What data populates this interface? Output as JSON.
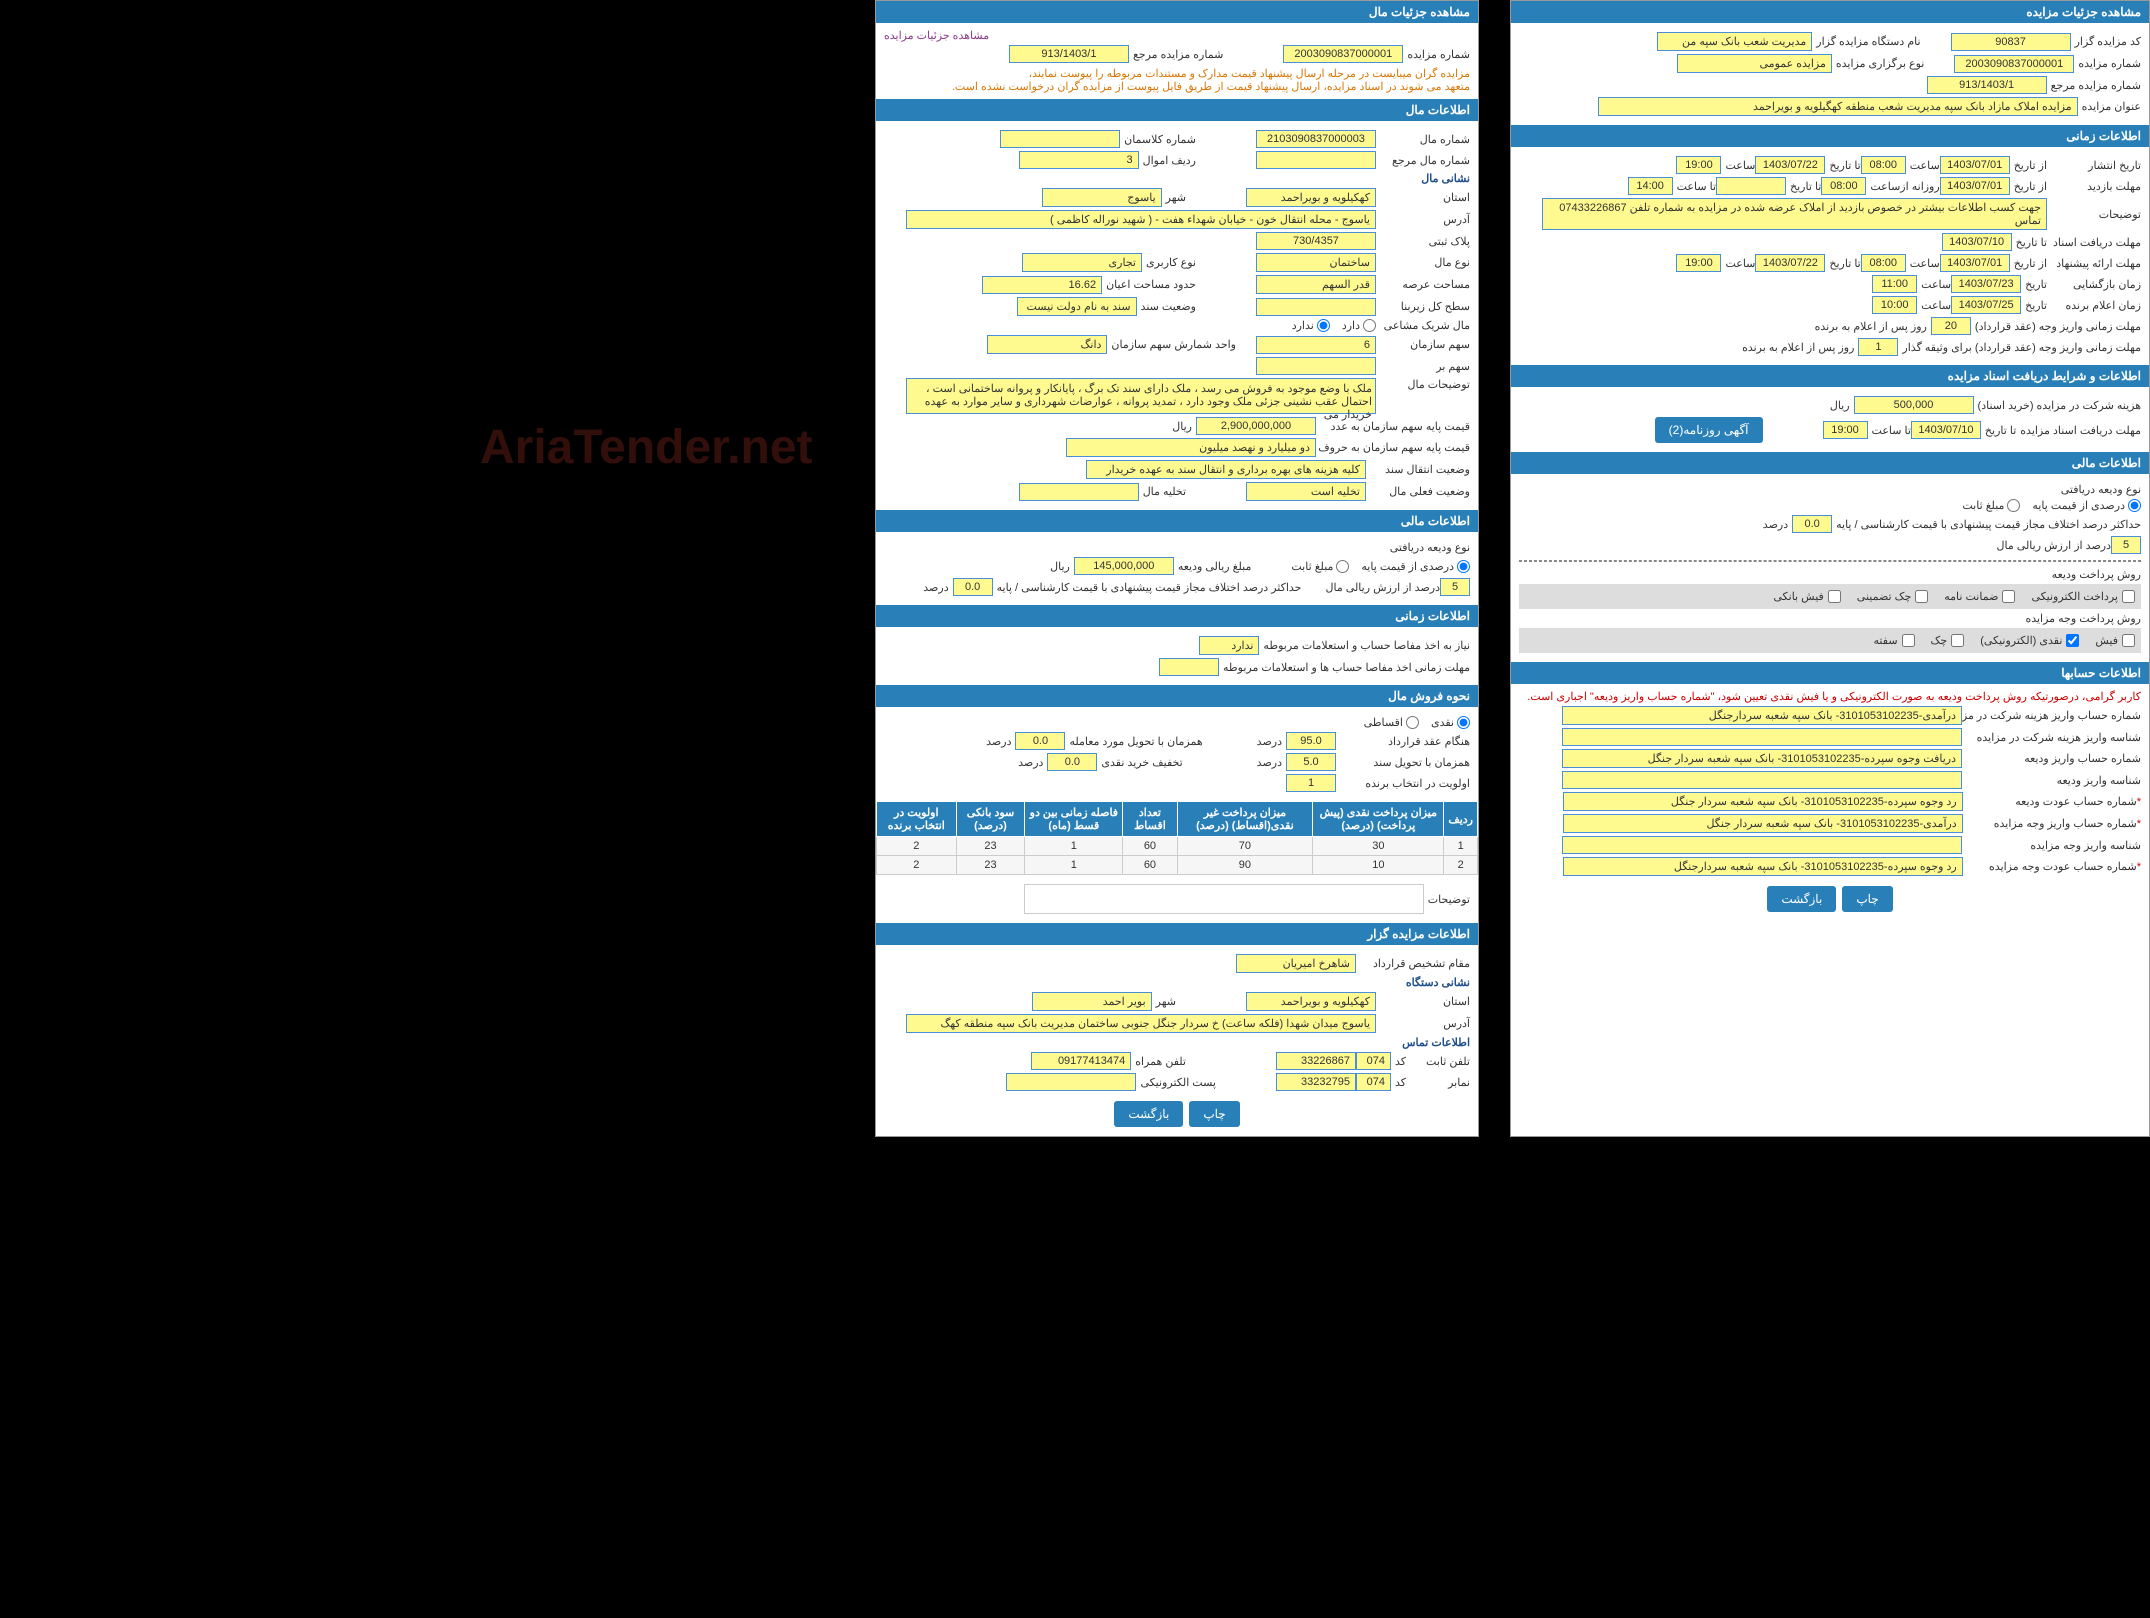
{
  "watermark": "AriaTender.net",
  "right": {
    "auction_details": {
      "header": "مشاهده جزئیات مزایده",
      "organizer_code_label": "کد مزایده گزار",
      "organizer_code": "90837",
      "organizer_name_label": "نام دستگاه مزایده گزار",
      "organizer_name": "مدیریت شعب بانک سپه من",
      "auction_number_label": "شماره مزایده",
      "auction_number": "2003090837000001",
      "auction_type_label": "نوع برگزاری مزایده",
      "auction_type": "مزایده عمومی",
      "ref_number_label": "شماره مزایده مرجع",
      "ref_number": "913/1403/1",
      "title_label": "عنوان مزایده",
      "title": "مزایده املاک مازاد بانک سپه مدیریت شعب منطقه کهگیلویه و بویراحمد"
    },
    "time_info": {
      "header": "اطلاعات زمانی",
      "publish_label": "تاریخ انتشار",
      "from_label": "از تاریخ",
      "to_label": "تا تاریخ",
      "time_label": "ساعت",
      "publish_from_date": "1403/07/01",
      "publish_from_time": "08:00",
      "publish_to_date": "1403/07/22",
      "publish_to_time": "19:00",
      "visit_label": "مهلت بازدید",
      "visit_from_date": "1403/07/01",
      "visit_from_time": "08:00",
      "visit_to_date": "",
      "visit_to_time": "14:00",
      "daily_from_label": "روزانه ازساعت",
      "daily_to_label": "تا ساعت",
      "desc_label": "توضیحات",
      "desc_text": "جهت کسب اطلاعات بیشتر در خصوص بازدید از املاک عرضه شده در مزایده به شماره تلفن 07433226867 تماس",
      "doc_receive_label": "مهلت دریافت اسناد",
      "doc_receive_date": "1403/07/10",
      "doc_receive_to": "",
      "offer_label": "مهلت ارائه پیشنهاد",
      "offer_from_date": "1403/07/01",
      "offer_from_time": "08:00",
      "offer_to_date": "1403/07/22",
      "offer_to_time": "19:00",
      "opening_label": "زمان بازگشایی",
      "opening_date": "1403/07/23",
      "opening_time": "11:00",
      "winner_label": "زمان اعلام برنده",
      "winner_date": "1403/07/25",
      "winner_time": "10:00",
      "deposit_label": "مهلت زمانی واریز وجه (عقد قرارداد)",
      "deposit_days": "20",
      "deposit_suffix": "روز پس از اعلام به برنده",
      "collateral_label": "مهلت زمانی واریز وجه (عقد قرارداد) برای وثیقه گذار",
      "collateral_days": "1",
      "collateral_suffix": "روز پس از اعلام به برنده"
    },
    "doc_conditions": {
      "header": "اطلاعات و شرایط دریافت اسناد مزایده",
      "cost_label": "هزینه شرکت در مزایده (خرید اسناد)",
      "cost": "500,000",
      "cost_unit": "ریال",
      "receive_label": "مهلت دریافت اسناد مزایده",
      "receive_from": "1403/07/10",
      "receive_to": "19:00",
      "to_time_label": "تا ساعت",
      "newspaper_btn": "آگهی روزنامه(2)"
    },
    "financial": {
      "header": "اطلاعات مالی",
      "deposit_type_label": "نوع ودیعه دریافتی",
      "percent_base_label": "درصدی از قیمت پایه",
      "fixed_amount_label": "مبلغ ثابت",
      "max_diff_label": "حداکثر درصد اختلاف مجاز قیمت پیشنهادی با قیمت کارشناسی / پایه",
      "max_diff": "0.0",
      "percent_unit": "درصد",
      "percent_rial_label": "درصد از ارزش ریالی مال",
      "percent_rial": "5",
      "deposit_method_label": "روش پرداخت ودیعه",
      "method_electronic": "پرداخت الکترونیکی",
      "method_guarantee": "ضمانت نامه",
      "method_check": "چک تضمینی",
      "method_fish": "فیش بانکی",
      "payment_method_label": "روش پرداخت وجه مزایده",
      "pay_fish": "فیش",
      "pay_cash": "نقدی (الکترونیکی)",
      "pay_check": "چک",
      "pay_safte": "سفته"
    },
    "accounts": {
      "header": "اطلاعات حسابها",
      "warning": "کاربر گرامی، درصورتیکه روش پرداخت ودیعه به صورت الکترونیکی و یا فیش نقدی تعیین شود، \"شماره حساب واریز ودیعه\" اجباری است.",
      "acc1_label": "شماره حساب واریز هزینه شرکت در مزایده",
      "acc1": "درآمدی-3101053102235- بانک سپه شعبه سردارجنگل",
      "acc2_label": "شناسه واریز هزینه شرکت در مزایده",
      "acc3_label": "شماره حساب واریز ودیعه",
      "acc3": "دریافت وجوه سپرده-3101053102235- بانک سپه شعبه سردار جنگل",
      "acc4_label": "شناسه واریز ودیعه",
      "acc5_label": "شماره حساب عودت ودیعه",
      "acc5": "رد وجوه سپرده-3101053102235- بانک سپه شعبه سردار جنگل",
      "acc6_label": "شماره حساب واریز وجه مزایده",
      "acc6": "درآمدی-3101053102235- بانک سپه شعبه سردار جنگل",
      "acc7_label": "شناسه واریز وجه مزایده",
      "acc8_label": "شماره حساب عودت وجه مزایده",
      "acc8": "رد وجوه سپرده-3101053102235- بانک سپه شعبه سردارجنگل",
      "print_btn": "چاپ",
      "back_btn": "بازگشت"
    }
  },
  "left": {
    "property_details": {
      "header": "مشاهده جزئیات مال",
      "details_link": "مشاهده جزئیات مزایده",
      "auction_number_label": "شماره مزایده",
      "auction_number": "2003090837000001",
      "ref_number_label": "شماره مزایده مرجع",
      "ref_number": "913/1403/1",
      "notice1": "مزایده گران میبایست در مرحله ارسال پیشنهاد قیمت مدارک و مستندات مربوطه را پیوست نمایند،",
      "notice2": "متعهد می شوند در اسناد مزایده، ارسال پیشنهاد قیمت از طریق فایل پیوست از مزایده گران درخواست نشده است."
    },
    "property_info": {
      "header": "اطلاعات مال",
      "property_id_label": "شماره مال",
      "property_id": "2103090837000003",
      "class_number_label": "شماره کلاسمان",
      "class_number": "",
      "ref_property_label": "شماره مال مرجع",
      "row_label": "ردیف اموال",
      "row": "3",
      "address_header": "نشانی مال",
      "province_label": "استان",
      "province": "کهکیلویه و بویراحمد",
      "city_label": "شهر",
      "city": "یاسوج",
      "address_label": "آدرس",
      "address": "یاسوج - محله انتقال خون - خیابان شهداء هفت - ( شهید نوراله کاظمی )",
      "plaque_label": "پلاک ثبتی",
      "plaque": "730/4357",
      "property_type_label": "نوع مال",
      "property_type": "ساختمان",
      "use_type_label": "نوع کاربری",
      "use_type": "تجاری",
      "area_label": "مساحت عرصه",
      "area": "قدر السهم",
      "built_area_label": "حدود مساحت اعیان",
      "built_area": "16.62",
      "floor_label": "سطح کل زیربنا",
      "floor": "",
      "doc_status_label": "وضعیت سند",
      "doc_status": "سند به نام دولت نیست",
      "partner_label": "مال شریک مشاعی",
      "has_label": "دارد",
      "hasnt_label": "ندارد",
      "org_share_label": "سهم سازمان",
      "org_share": "6",
      "count_unit_label": "واحد شمارش سهم سازمان",
      "count_unit": "دانگ",
      "rest_share_label": "سهم بر",
      "desc_area_label": "توضیحات مال",
      "desc_area": "ملک با وضع موجود به فروش می رسد ، ملک دارای سند تک برگ ، پایانکار و پروانه ساختمانی است ، احتمال عقب نشینی جزئی ملک وجود دارد ، تمدید پروانه ، عوارضات شهرداری و سایر موارد به عهده خریدار می",
      "base_price_num_label": "قیمت پایه سهم سازمان به عدد",
      "base_price_num": "2,900,000,000",
      "rial": "ریال",
      "base_price_word_label": "قیمت پایه سهم سازمان به حروف",
      "base_price_word": "دو میلیارد و نهصد میلیون",
      "transfer_label": "وضعیت انتقال سند",
      "transfer": "کلیه هزینه های بهره برداری و انتقال سند به عهده خریدار",
      "current_status_label": "وضعیت فعلی مال",
      "current_status": "تخلیه است",
      "evac_label": "تخلیه مال"
    },
    "financial": {
      "header": "اطلاعات مالی",
      "deposit_type_label": "نوع ودیعه دریافتی",
      "percent_base_label": "درصدی از قیمت پایه",
      "fixed_amount_label": "مبلغ ثابت",
      "deposit_amount_label": "مبلغ ریالی ودیعه",
      "deposit_amount": "145,000,000",
      "rial": "ریال",
      "percent_rial_label": "درصد از ارزش ریالی مال",
      "percent_rial": "5",
      "max_diff_label": "حداکثر درصد اختلاف مجاز قیمت پیشنهادی با قیمت کارشناسی / پایه",
      "max_diff": "0.0",
      "percent": "درصد"
    },
    "time_info": {
      "header": "اطلاعات زمانی",
      "need_inquiry_label": "نیاز به اخذ مفاصا حساب و استعلامات مربوطه",
      "need_inquiry": "ندارد",
      "inquiry_time_label": "مهلت زمانی اخذ مفاصا حساب ها و استعلامات مربوطه"
    },
    "sale_method": {
      "header": "نحوه فروش مال",
      "cash_label": "نقدی",
      "installment_label": "اقساطی",
      "at_contract_label": "هنگام عقد قرارداد",
      "at_contract": "95.0",
      "same_delivery_label": "همزمان با تحویل مورد معامله",
      "same_delivery": "0.0",
      "at_doc_label": "همزمان با تحویل سند",
      "at_doc": "5.0",
      "cash_discount_label": "تخفیف خرید نقدی",
      "cash_discount": "0.0",
      "priority_label": "اولویت در انتخاب برنده",
      "priority": "1",
      "percent": "درصد"
    },
    "installments": {
      "columns": [
        "ردیف",
        "میزان پرداخت نقدی (پیش پرداخت) (درصد)",
        "میزان پرداخت غیر نقدی(اقساط) (درصد)",
        "تعداد اقساط",
        "فاصله زمانی بین دو قسط (ماه)",
        "سود بانکی (درصد)",
        "اولویت در انتخاب برنده"
      ],
      "rows": [
        [
          "1",
          "30",
          "70",
          "60",
          "1",
          "23",
          "2"
        ],
        [
          "2",
          "10",
          "90",
          "60",
          "1",
          "23",
          "2"
        ]
      ],
      "desc_label": "توضیحات"
    },
    "seller_info": {
      "header": "اطلاعات مزایده گزار",
      "contract_authority_label": "مقام تشخیص قرارداد",
      "contract_authority": "شاهرخ امیریان",
      "address_header": "نشانی دستگاه",
      "province_label": "استان",
      "province": "کهکیلویه و بویراحمد",
      "city_label": "شهر",
      "city": "بویر احمد",
      "address_label": "آدرس",
      "address": "یاسوج میدان شهدا (فلکه ساعت) خ سردار جنگل جنوبی ساختمان مدیریت بانک سپه منطقه کهگ",
      "contact_header": "اطلاعات تماس",
      "phone_label": "تلفن ثابت",
      "phone_code": "074",
      "phone": "33226867",
      "code_label": "کد",
      "mobile_label": "تلفن همراه",
      "mobile": "09177413474",
      "fax_label": "نمابر",
      "fax_code": "074",
      "fax": "33232795",
      "email_label": "پست الکترونیکی",
      "print_btn": "چاپ",
      "back_btn": "بازگشت"
    }
  }
}
